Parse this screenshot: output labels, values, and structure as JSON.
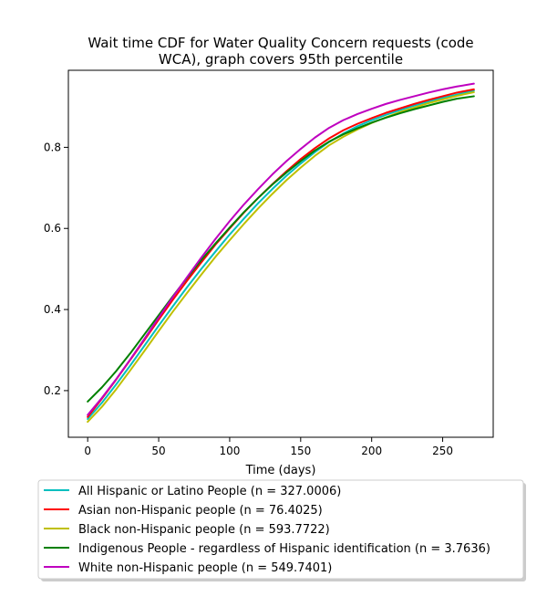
{
  "chart_data": {
    "type": "line",
    "title": "Wait time CDF for Water Quality Concern  requests (code WCA), graph covers 95th percentile",
    "title_lines": [
      "Wait time CDF for Water Quality Concern  requests (code",
      "WCA), graph covers 95th percentile"
    ],
    "xlabel": "Time (days)",
    "ylabel": "",
    "xlim": [
      -13.6,
      285.6
    ],
    "ylim": [
      0.085,
      0.99
    ],
    "xticks": [
      0,
      50,
      100,
      150,
      200,
      250
    ],
    "yticks": [
      0.2,
      0.4,
      0.6,
      0.8
    ],
    "grid": false,
    "legend_position": "below the plot",
    "x": [
      0,
      10,
      20,
      30,
      40,
      50,
      60,
      70,
      80,
      90,
      100,
      110,
      120,
      130,
      140,
      150,
      160,
      170,
      180,
      190,
      200,
      210,
      220,
      230,
      240,
      250,
      260,
      272
    ],
    "series": [
      {
        "name": "All Hispanic or Latino People (n = 327.0006)",
        "color": "#00bfbf",
        "values": [
          0.13,
          0.17,
          0.215,
          0.262,
          0.311,
          0.36,
          0.408,
          0.455,
          0.5,
          0.543,
          0.585,
          0.624,
          0.662,
          0.697,
          0.73,
          0.76,
          0.788,
          0.813,
          0.834,
          0.852,
          0.867,
          0.88,
          0.892,
          0.903,
          0.913,
          0.922,
          0.93,
          0.94
        ]
      },
      {
        "name": "Asian non-Hispanic people (n = 76.4025)",
        "color": "#ff0000",
        "values": [
          0.135,
          0.18,
          0.227,
          0.276,
          0.325,
          0.375,
          0.424,
          0.471,
          0.516,
          0.56,
          0.6,
          0.639,
          0.675,
          0.709,
          0.741,
          0.771,
          0.798,
          0.822,
          0.842,
          0.858,
          0.872,
          0.885,
          0.896,
          0.907,
          0.917,
          0.926,
          0.935,
          0.943
        ]
      },
      {
        "name": "Black non-Hispanic people (n = 593.7722)",
        "color": "#bfbf00",
        "values": [
          0.123,
          0.16,
          0.203,
          0.25,
          0.298,
          0.347,
          0.395,
          0.441,
          0.486,
          0.53,
          0.571,
          0.611,
          0.649,
          0.685,
          0.719,
          0.75,
          0.779,
          0.805,
          0.826,
          0.844,
          0.86,
          0.874,
          0.887,
          0.898,
          0.909,
          0.918,
          0.927,
          0.936
        ]
      },
      {
        "name": "Indigenous People - regardless of Hispanic identification (n = 3.7636)",
        "color": "#008000",
        "values": [
          0.173,
          0.208,
          0.248,
          0.292,
          0.339,
          0.386,
          0.433,
          0.478,
          0.522,
          0.563,
          0.602,
          0.64,
          0.675,
          0.708,
          0.738,
          0.766,
          0.792,
          0.814,
          0.832,
          0.847,
          0.861,
          0.873,
          0.884,
          0.894,
          0.903,
          0.912,
          0.92,
          0.926
        ]
      },
      {
        "name": "White non-Hispanic people (n = 549.7401)",
        "color": "#bf00bf",
        "values": [
          0.14,
          0.182,
          0.228,
          0.277,
          0.328,
          0.38,
          0.431,
          0.48,
          0.528,
          0.574,
          0.618,
          0.659,
          0.697,
          0.733,
          0.766,
          0.796,
          0.824,
          0.848,
          0.867,
          0.882,
          0.895,
          0.907,
          0.917,
          0.926,
          0.935,
          0.943,
          0.95,
          0.957
        ]
      }
    ]
  }
}
